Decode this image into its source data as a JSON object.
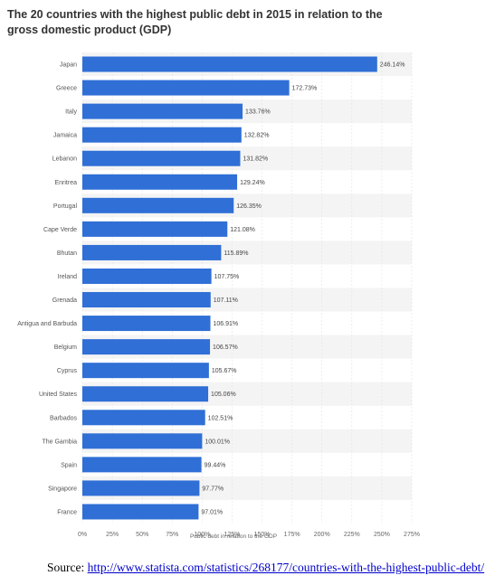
{
  "chart_data": {
    "type": "bar",
    "orientation": "horizontal",
    "title": "The 20 countries with the highest public debt in 2015 in relation to the gross domestic product (GDP)",
    "xlabel": "Public debt in relation to the GDP",
    "ylabel": "",
    "xlim": [
      0,
      275
    ],
    "xticks": [
      "0%",
      "25%",
      "50%",
      "75%",
      "100%",
      "125%",
      "150%",
      "175%",
      "200%",
      "225%",
      "250%",
      "275%"
    ],
    "xtick_values": [
      0,
      25,
      50,
      75,
      100,
      125,
      150,
      175,
      200,
      225,
      250,
      275
    ],
    "grid": true,
    "bar_color": "#2f6fd6",
    "categories": [
      "Japan",
      "Greece",
      "Italy",
      "Jamaica",
      "Lebanon",
      "Enritrea",
      "Portugal",
      "Cape Verde",
      "Bhutan",
      "Ireland",
      "Grenada",
      "Antigua and Barbuda",
      "Belgium",
      "Cyprus",
      "United States",
      "Barbados",
      "The Gambia",
      "Spain",
      "Singapore",
      "France"
    ],
    "values": [
      246.14,
      172.73,
      133.76,
      132.82,
      131.82,
      129.24,
      126.35,
      121.08,
      115.89,
      107.75,
      107.11,
      106.91,
      106.57,
      105.67,
      105.06,
      102.51,
      100.01,
      99.44,
      97.77,
      97.01
    ],
    "value_labels": [
      "246.14%",
      "172.73%",
      "133.76%",
      "132.82%",
      "131.82%",
      "129.24%",
      "126.35%",
      "121.08%",
      "115.89%",
      "107.75%",
      "107.11%",
      "106.91%",
      "106.57%",
      "105.67%",
      "105.06%",
      "102.51%",
      "100.01%",
      "99.44%",
      "97.77%",
      "97.01%"
    ]
  },
  "source": {
    "label": "Source: ",
    "url_text": "http://www.statista.com/statistics/268177/countries-with-the-highest-public-debt/"
  }
}
